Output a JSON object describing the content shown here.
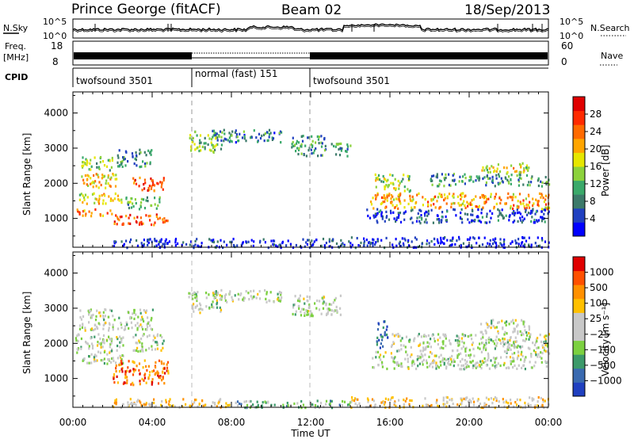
{
  "header": {
    "title": "Prince George (fitACF)",
    "beam": "Beam 02",
    "date": "18/Sep/2013"
  },
  "noise_panel": {
    "left_label": "N.Sky",
    "left_ticks": [
      "10^5",
      "10^0"
    ],
    "right_label": "N.Search",
    "right_ticks": [
      "10^5",
      "10^0"
    ]
  },
  "freq_panel": {
    "left_label_line1": "Freq.",
    "left_label_line2": "[MHz]",
    "left_ticks": [
      "18",
      "8"
    ],
    "right_label": "Nave",
    "right_ticks": [
      "60",
      "0"
    ]
  },
  "cpid_panel": {
    "label": "CPID",
    "segments": [
      {
        "name": "twofsound 3501",
        "start_h": 0,
        "end_h": 6
      },
      {
        "name": "normal (fast) 151",
        "start_h": 6,
        "end_h": 12
      },
      {
        "name": "twofsound 3501",
        "start_h": 12,
        "end_h": 24
      }
    ]
  },
  "chart_data": [
    {
      "type": "heatmap",
      "name": "power",
      "ylabel": "Slant Range [km]",
      "yticks": [
        "4000",
        "3000",
        "2000",
        "1000"
      ],
      "ylim": [
        180,
        4600
      ],
      "xlim": [
        0,
        24
      ],
      "colorbar_label": "Power [dB]",
      "colorbar_ticks": [
        "28",
        "24",
        "20",
        "16",
        "12",
        "8",
        "4"
      ],
      "colors": [
        "#0000ff",
        "#2040c0",
        "#3c7a6a",
        "#3aa96a",
        "#8cd23c",
        "#e6e600",
        "#ffa500",
        "#ff6a00",
        "#ff2a00",
        "#e00000"
      ],
      "regions": [
        {
          "t0": 0.1,
          "t1": 2.0,
          "r0": 1100,
          "r1": 1300,
          "level": 0.75
        },
        {
          "t0": 0.3,
          "t1": 2.5,
          "r0": 1450,
          "r1": 1750,
          "level": 0.55
        },
        {
          "t0": 0.1,
          "t1": 2.2,
          "r0": 1900,
          "r1": 2300,
          "level": 0.6
        },
        {
          "t0": 0.4,
          "t1": 2.0,
          "r0": 2400,
          "r1": 2800,
          "level": 0.45
        },
        {
          "t0": 2.0,
          "t1": 4.8,
          "r0": 850,
          "r1": 1150,
          "level": 0.8
        },
        {
          "t0": 3.0,
          "t1": 4.6,
          "r0": 1800,
          "r1": 2200,
          "level": 0.8
        },
        {
          "t0": 2.6,
          "t1": 4.4,
          "r0": 1300,
          "r1": 1650,
          "level": 0.35
        },
        {
          "t0": 2.2,
          "t1": 4.0,
          "r0": 2500,
          "r1": 3000,
          "level": 0.3
        },
        {
          "t0": 5.8,
          "t1": 7.5,
          "r0": 2900,
          "r1": 3500,
          "level": 0.4
        },
        {
          "t0": 7.0,
          "t1": 10.5,
          "r0": 3200,
          "r1": 3550,
          "level": 0.25
        },
        {
          "t0": 11.0,
          "t1": 12.8,
          "r0": 2800,
          "r1": 3400,
          "level": 0.3
        },
        {
          "t0": 13.0,
          "t1": 14.0,
          "r0": 2800,
          "r1": 3200,
          "level": 0.35
        },
        {
          "t0": 15.0,
          "t1": 24.0,
          "r0": 1300,
          "r1": 1750,
          "level": 0.65
        },
        {
          "t0": 15.2,
          "t1": 17.0,
          "r0": 1800,
          "r1": 2300,
          "level": 0.45
        },
        {
          "t0": 18.0,
          "t1": 24.0,
          "r0": 1950,
          "r1": 2300,
          "level": 0.3
        },
        {
          "t0": 20.5,
          "t1": 23.0,
          "r0": 2300,
          "r1": 2600,
          "level": 0.55
        },
        {
          "t0": 14.8,
          "t1": 24.0,
          "r0": 900,
          "r1": 1300,
          "level": 0.15
        },
        {
          "t0": 2.0,
          "t1": 14.0,
          "r0": 200,
          "r1": 450,
          "level": 0.12
        },
        {
          "t0": 14.0,
          "t1": 24.0,
          "r0": 200,
          "r1": 500,
          "level": 0.1
        }
      ]
    },
    {
      "type": "heatmap",
      "name": "velocity",
      "ylabel": "Slant Range [km]",
      "yticks": [
        "4000",
        "3000",
        "2000",
        "1000"
      ],
      "ylim": [
        180,
        4600
      ],
      "xlim": [
        0,
        24
      ],
      "colorbar_label": "Velocity [m s⁻¹]",
      "colorbar_ticks": [
        "1000",
        "500",
        "100",
        "25",
        "−25",
        "−100",
        "−500",
        "−1000"
      ],
      "colors": [
        "#2040c0",
        "#3a6ab0",
        "#3c9a6a",
        "#7cd040",
        "#c8c8c8",
        "#c8c8c8",
        "#ffc000",
        "#ff9000",
        "#ff5000",
        "#e00000"
      ],
      "xticks": [
        "00:00",
        "04:00",
        "08:00",
        "12:00",
        "16:00",
        "20:00",
        "00:00"
      ],
      "xlabel": "Time UT",
      "regions": [
        {
          "t0": 0.1,
          "t1": 2.5,
          "r0": 1450,
          "r1": 2300,
          "level": 0.45
        },
        {
          "t0": 0.3,
          "t1": 4.0,
          "r0": 2400,
          "r1": 3000,
          "level": 0.45
        },
        {
          "t0": 2.0,
          "t1": 4.8,
          "r0": 850,
          "r1": 1550,
          "level": 0.78
        },
        {
          "t0": 3.0,
          "t1": 4.6,
          "r0": 1800,
          "r1": 2300,
          "level": 0.45
        },
        {
          "t0": 5.8,
          "t1": 7.5,
          "r0": 2900,
          "r1": 3500,
          "level": 0.45
        },
        {
          "t0": 7.0,
          "t1": 10.5,
          "r0": 3200,
          "r1": 3550,
          "level": 0.45
        },
        {
          "t0": 11.0,
          "t1": 13.5,
          "r0": 2800,
          "r1": 3400,
          "level": 0.45
        },
        {
          "t0": 15.3,
          "t1": 15.9,
          "r0": 1900,
          "r1": 2700,
          "level": 0.15
        },
        {
          "t0": 15.0,
          "t1": 24.0,
          "r0": 1300,
          "r1": 1800,
          "level": 0.45
        },
        {
          "t0": 16.0,
          "t1": 24.0,
          "r0": 1800,
          "r1": 2300,
          "level": 0.45
        },
        {
          "t0": 20.5,
          "t1": 23.0,
          "r0": 2300,
          "r1": 2700,
          "level": 0.45
        },
        {
          "t0": 8.0,
          "t1": 14.0,
          "r0": 200,
          "r1": 400,
          "level": 0.35
        },
        {
          "t0": 2.0,
          "t1": 8.0,
          "r0": 200,
          "r1": 450,
          "level": 0.62
        },
        {
          "t0": 14.0,
          "t1": 24.0,
          "r0": 200,
          "r1": 500,
          "level": 0.6
        }
      ]
    }
  ]
}
